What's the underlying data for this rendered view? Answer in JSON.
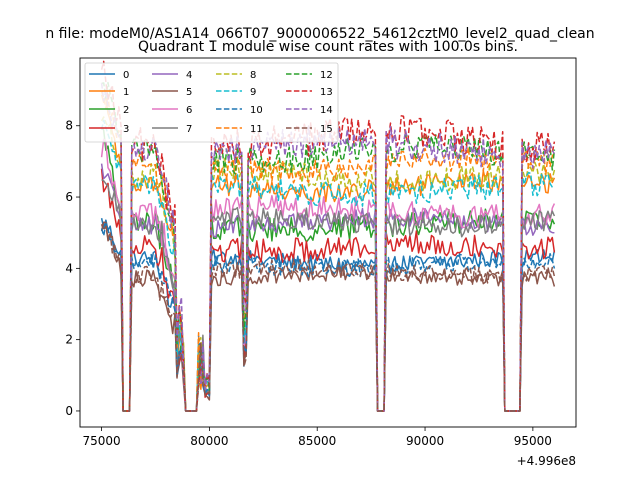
{
  "chart_data": {
    "type": "line",
    "suptitle": "n file: modeM0/AS1A14_066T07_9000006522_54612cztM0_level2_quad_clean",
    "title": "Quadrant 1 module wise count rates with 100.0s bins.",
    "xlabel": "",
    "ylabel": "",
    "x_offset_label": "+4.996e8",
    "xlim": [
      74000,
      97000
    ],
    "ylim": [
      -0.45,
      9.9
    ],
    "x_ticks": [
      75000,
      80000,
      85000,
      90000,
      95000
    ],
    "x_tick_labels": [
      "75000",
      "80000",
      "85000",
      "90000",
      "95000"
    ],
    "y_ticks": [
      0,
      2,
      4,
      6,
      8
    ],
    "y_tick_labels": [
      "0",
      "2",
      "4",
      "6",
      "8"
    ],
    "legend_position": "top-left",
    "legend_columns": 4,
    "x_range": [
      75000,
      96000
    ],
    "x_step": 100,
    "gaps": [
      {
        "start": 76000,
        "end": 76350,
        "depth": 0.0
      },
      {
        "start": 78450,
        "end": 78850,
        "depth": 0.15
      },
      {
        "start": 78850,
        "end": 79450,
        "depth": 0.0
      },
      {
        "start": 79450,
        "end": 79700,
        "depth": 0.2
      },
      {
        "start": 79700,
        "end": 80100,
        "depth": 0.05
      },
      {
        "start": 81550,
        "end": 81750,
        "depth": 0.12
      },
      {
        "start": 87750,
        "end": 88200,
        "depth": 0.0
      },
      {
        "start": 93700,
        "end": 94500,
        "depth": 0.0
      }
    ],
    "series": [
      {
        "name": "0",
        "color": "#1f77b4",
        "style": "solid",
        "base": 4.2,
        "noise": 0.25,
        "peak": 5.3
      },
      {
        "name": "1",
        "color": "#ff7f0e",
        "style": "solid",
        "base": 6.3,
        "noise": 0.3,
        "peak": 8.6
      },
      {
        "name": "2",
        "color": "#2ca02c",
        "style": "solid",
        "base": 5.2,
        "noise": 0.35,
        "peak": 7.6
      },
      {
        "name": "3",
        "color": "#d62728",
        "style": "solid",
        "base": 4.6,
        "noise": 0.35,
        "peak": 6.4
      },
      {
        "name": "4",
        "color": "#9467bd",
        "style": "solid",
        "base": 5.3,
        "noise": 0.3,
        "peak": 6.6
      },
      {
        "name": "5",
        "color": "#8c564b",
        "style": "solid",
        "base": 3.8,
        "noise": 0.25,
        "peak": 5.3
      },
      {
        "name": "6",
        "color": "#e377c2",
        "style": "solid",
        "base": 5.6,
        "noise": 0.35,
        "peak": 7.5
      },
      {
        "name": "7",
        "color": "#7f7f7f",
        "style": "solid",
        "base": 5.3,
        "noise": 0.3,
        "peak": 6.8
      },
      {
        "name": "8",
        "color": "#bcbd22",
        "style": "dashed",
        "base": 6.6,
        "noise": 0.35,
        "peak": 8.4
      },
      {
        "name": "9",
        "color": "#17becf",
        "style": "dashed",
        "base": 6.2,
        "noise": 0.35,
        "peak": 8.0
      },
      {
        "name": "10",
        "color": "#1f77b4",
        "style": "dashed",
        "base": 4.1,
        "noise": 0.25,
        "peak": 5.1
      },
      {
        "name": "11",
        "color": "#ff7f0e",
        "style": "dashed",
        "base": 6.9,
        "noise": 0.35,
        "peak": 8.8
      },
      {
        "name": "12",
        "color": "#2ca02c",
        "style": "dashed",
        "base": 7.2,
        "noise": 0.4,
        "peak": 9.0
      },
      {
        "name": "13",
        "color": "#d62728",
        "style": "dashed",
        "base": 7.6,
        "noise": 0.5,
        "peak": 9.4
      },
      {
        "name": "14",
        "color": "#9467bd",
        "style": "dashed",
        "base": 7.4,
        "noise": 0.45,
        "peak": 9.1
      },
      {
        "name": "15",
        "color": "#8c564b",
        "style": "dashed",
        "base": 3.9,
        "noise": 0.25,
        "peak": 5.2
      }
    ]
  }
}
